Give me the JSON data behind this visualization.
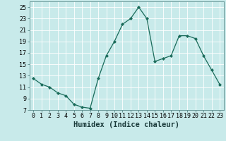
{
  "x": [
    0,
    1,
    2,
    3,
    4,
    5,
    6,
    7,
    8,
    9,
    10,
    11,
    12,
    13,
    14,
    15,
    16,
    17,
    18,
    19,
    20,
    21,
    22,
    23
  ],
  "y": [
    12.5,
    11.5,
    11.0,
    10.0,
    9.5,
    8.0,
    7.5,
    7.3,
    12.5,
    16.5,
    19.0,
    22.0,
    23.0,
    25.0,
    23.0,
    15.5,
    16.0,
    16.5,
    20.0,
    20.0,
    19.5,
    16.5,
    14.0,
    11.5
  ],
  "line_color": "#1a6b5a",
  "marker": "D",
  "marker_size": 2.0,
  "bg_color": "#c8eaea",
  "grid_color": "#ffffff",
  "xlabel": "Humidex (Indice chaleur)",
  "ylim": [
    7,
    26
  ],
  "xlim": [
    -0.5,
    23.5
  ],
  "yticks": [
    7,
    9,
    11,
    13,
    15,
    17,
    19,
    21,
    23,
    25
  ],
  "xticks": [
    0,
    1,
    2,
    3,
    4,
    5,
    6,
    7,
    8,
    9,
    10,
    11,
    12,
    13,
    14,
    15,
    16,
    17,
    18,
    19,
    20,
    21,
    22,
    23
  ],
  "xlabel_fontsize": 7.5,
  "tick_fontsize": 6.0,
  "spine_color": "#5a8a8a"
}
